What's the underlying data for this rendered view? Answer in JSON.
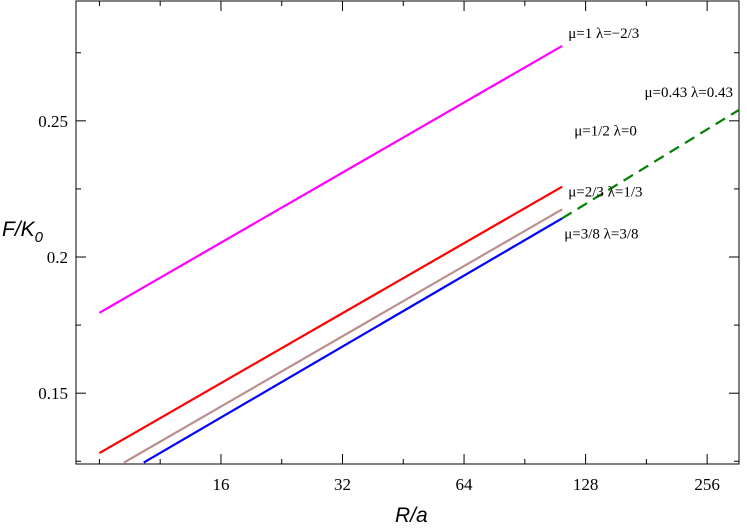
{
  "chart_data": {
    "type": "line",
    "title": "",
    "xlabel": "R/a",
    "ylabel_main": "F/K",
    "ylabel_sub": "0",
    "x_scale": "log2",
    "xlim": [
      7,
      307
    ],
    "ylim": [
      0.124,
      0.294
    ],
    "x_ticks": [
      16,
      32,
      64,
      128,
      256
    ],
    "x_tick_labels": [
      "16",
      "32",
      "64",
      "128",
      "256"
    ],
    "y_ticks": [
      0.15,
      0.2,
      0.25
    ],
    "y_tick_labels": [
      "0.15",
      "0.2",
      "0.25"
    ],
    "grid": false,
    "series": [
      {
        "name": "μ=1 λ=−2/3",
        "color": "#ff00ff",
        "dashed": false,
        "x": [
          8,
          112
        ],
        "y": [
          0.1795,
          0.2775
        ]
      },
      {
        "name": "μ=1/2 λ=0",
        "color": "#ff0000",
        "dashed": false,
        "x": [
          8,
          112
        ],
        "y": [
          0.128,
          0.2258
        ]
      },
      {
        "name": "μ=2/3 λ=1/3",
        "color": "#bc8f8f",
        "dashed": false,
        "x": [
          9.2,
          112
        ],
        "y": [
          0.1245,
          0.2175
        ]
      },
      {
        "name": "μ=3/8 λ=3/8",
        "color": "#0000ff",
        "dashed": false,
        "x": [
          10.3,
          112
        ],
        "y": [
          0.1245,
          0.2142
        ]
      },
      {
        "name": "μ=0.43 λ=0.43",
        "color": "#008000",
        "dashed": true,
        "x": [
          112,
          307
        ],
        "y": [
          0.2142,
          0.254
        ]
      }
    ]
  }
}
